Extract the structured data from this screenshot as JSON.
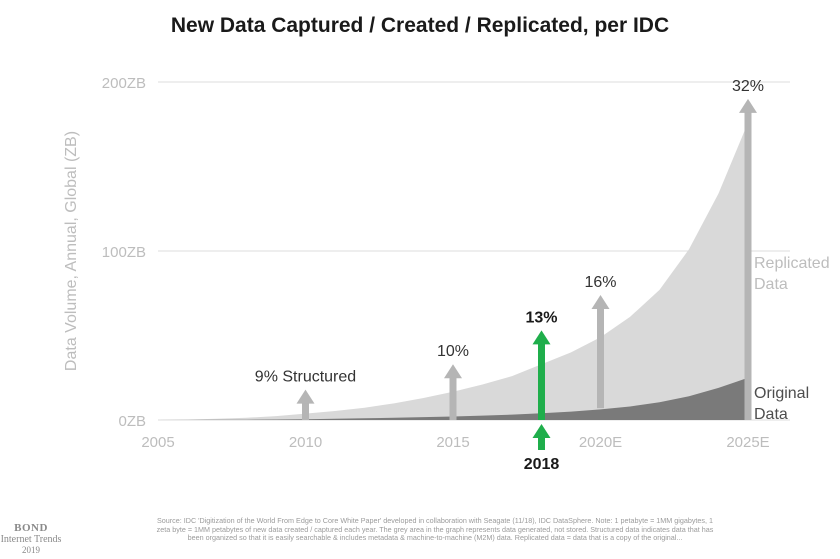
{
  "title": "New Data Captured / Created / Replicated, per IDC",
  "footer": {
    "source": "Source: IDC 'Digitization of the World From Edge to Core White Paper' developed in collaboration with Seagate (11/18), IDC DataSphere. Note: 1 petabyte = 1MM gigabytes, 1 zeta byte = 1MM petabytes of new data created / captured each year. The grey area in the graph represents data generated, not stored. Structured data indicates data that has been organized so that it is easily searchable & includes metadata & machine-to-machine (M2M) data. Replicated data = data that is a copy of the original...",
    "logo_line1": "BOND",
    "logo_line2": "Internet Trends",
    "logo_line3": "2019"
  },
  "colors": {
    "replicated": "#d9d9d9",
    "original": "#7a7a7a",
    "grey_arrow": "#b5b5b5",
    "highlight_arrow": "#1fae4b",
    "axis_text": "#bdbdbd",
    "grid": "#dcdcdc"
  },
  "chart_data": {
    "type": "area",
    "title": "New Data Captured / Created / Replicated, per IDC",
    "ylabel": "Data Volume, Annual, Global (ZB)",
    "xlabel": "",
    "xlim": [
      2005,
      2025
    ],
    "ylim": [
      0,
      200
    ],
    "x_ticks": [
      {
        "value": 2005,
        "label": "2005"
      },
      {
        "value": 2010,
        "label": "2010"
      },
      {
        "value": 2015,
        "label": "2015"
      },
      {
        "value": 2020,
        "label": "2020E"
      },
      {
        "value": 2025,
        "label": "2025E"
      }
    ],
    "y_ticks": [
      {
        "value": 0,
        "label": "0ZB"
      },
      {
        "value": 100,
        "label": "100ZB"
      },
      {
        "value": 200,
        "label": "200ZB"
      }
    ],
    "grid": "horizontal",
    "x": [
      2005,
      2006,
      2007,
      2008,
      2009,
      2010,
      2011,
      2012,
      2013,
      2014,
      2015,
      2016,
      2017,
      2018,
      2019,
      2020,
      2021,
      2022,
      2023,
      2024,
      2025
    ],
    "series": [
      {
        "name": "Replicated Data",
        "values": [
          0,
          0.3,
          0.7,
          1.3,
          2.3,
          3.8,
          5.3,
          7.3,
          9.8,
          13,
          16.7,
          21,
          26,
          33,
          40,
          49,
          61,
          77,
          101,
          134,
          176
        ]
      },
      {
        "name": "Original Data",
        "values": [
          0,
          0.05,
          0.1,
          0.2,
          0.3,
          0.5,
          0.7,
          1.0,
          1.3,
          1.7,
          2.1,
          2.6,
          3.2,
          4.0,
          5.0,
          6.3,
          8.0,
          10.5,
          14,
          19,
          25
        ]
      }
    ],
    "markers": [
      {
        "x": 2010,
        "label": "9% Structured",
        "value_top": 18,
        "value_bottom": 0,
        "highlight": false
      },
      {
        "x": 2015,
        "label": "10%",
        "value_top": 33,
        "value_bottom": 0,
        "highlight": false
      },
      {
        "x": 2018,
        "label": "13%",
        "value_top": 53,
        "value_bottom": 0,
        "highlight": true,
        "axis_label": "2018"
      },
      {
        "x": 2020,
        "label": "16%",
        "value_top": 74,
        "value_bottom": 7,
        "highlight": false
      },
      {
        "x": 2025,
        "label": "32%",
        "value_top": 190,
        "value_bottom": 0,
        "highlight": false
      }
    ]
  }
}
